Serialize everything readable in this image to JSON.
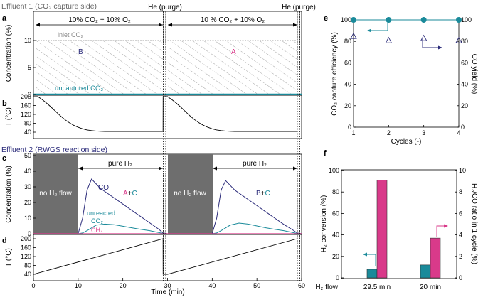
{
  "colors": {
    "teal": "#1a8a9a",
    "navy": "#2b2b7a",
    "magenta": "#d93a8a",
    "gray_fill": "#6e6e6e",
    "axis": "#000000",
    "label_gray": "#666666"
  },
  "left": {
    "section1_title": "Effluent 1 (CO₂ capture side)",
    "section2_title": "Effluent 2 (RWGS reaction side)",
    "panel_letters": [
      "a",
      "b",
      "c",
      "d"
    ],
    "he_purge_label": "He (purge)",
    "he_purge_label_2": "He (purge)",
    "phase_label_1": "10% CO₂ + 10% O₂",
    "phase_label_2": "10 % CO₂ + 10% O₂",
    "inlet_label": "inlet CO₂",
    "uncaptured_label": "uncaptured CO₂",
    "region_b": "B",
    "region_a": "A",
    "pure_h2_1": "pure H₂",
    "pure_h2_2": "pure H₂",
    "no_h2_1": "no H₂ flow",
    "no_h2_2": "no H₂ flow",
    "co_label": "CO",
    "unreacted_label_1": "unreacted",
    "unreacted_label_2": "CO₂",
    "ch4_label": "CH₄",
    "ac_part1": "A",
    "ac_part2": "+",
    "ac_part3": "C",
    "bc_part1": "B",
    "bc_part2": "+",
    "bc_part3": "C",
    "xlabel": "Time (min)"
  },
  "chart_data": [
    {
      "panel": "a",
      "type": "area",
      "title": "Effluent 1 (CO₂ capture side)",
      "ylabel": "Concentration (%)",
      "ylim": [
        0,
        10
      ],
      "yticks": [
        0,
        5,
        10
      ],
      "xlim": [
        0,
        60
      ],
      "series": [
        {
          "name": "inlet CO₂",
          "x": [
            0,
            29,
            30,
            59
          ],
          "y": [
            10,
            10,
            10,
            10
          ]
        },
        {
          "name": "uncaptured CO₂",
          "x": [
            0,
            60
          ],
          "y": [
            0.1,
            0.1
          ]
        }
      ]
    },
    {
      "panel": "b",
      "type": "line",
      "ylabel": "T (°C)",
      "ylim": [
        30,
        210
      ],
      "yticks": [
        40,
        80,
        120,
        160,
        200
      ],
      "xlim": [
        0,
        60
      ],
      "series": [
        {
          "name": "temperature",
          "x": [
            0,
            1,
            2,
            3,
            4,
            5,
            6,
            7,
            8,
            9,
            10,
            11,
            12,
            13,
            14,
            15,
            16,
            20,
            25,
            29,
            29.01,
            30,
            31,
            32,
            33,
            34,
            35,
            36,
            37,
            38,
            39,
            40,
            41,
            42,
            43,
            44,
            45,
            46,
            50,
            55,
            59
          ],
          "y": [
            200,
            200,
            186,
            170,
            152,
            133,
            114,
            97,
            83,
            71,
            62,
            55,
            50,
            47,
            45,
            44,
            43,
            43,
            43,
            43,
            200,
            200,
            186,
            170,
            152,
            133,
            114,
            97,
            83,
            71,
            62,
            55,
            50,
            47,
            45,
            44,
            43,
            43,
            43,
            43,
            43
          ]
        }
      ]
    },
    {
      "panel": "c",
      "type": "line",
      "title": "Effluent 2 (RWGS reaction side)",
      "ylabel": "Concentration (%)",
      "ylim": [
        0,
        50
      ],
      "yticks": [
        0,
        10,
        20,
        30,
        40,
        50
      ],
      "xlim": [
        0,
        60
      ],
      "series": [
        {
          "name": "CO",
          "x": [
            0,
            10,
            11,
            12,
            13,
            14,
            15,
            16,
            18,
            20,
            22,
            24,
            26,
            28,
            29,
            30,
            40,
            41,
            42,
            43,
            44,
            45,
            46,
            48,
            50,
            52,
            54,
            56,
            58,
            59,
            60
          ],
          "y": [
            0,
            0,
            10,
            28,
            35,
            32,
            29,
            27,
            23,
            19,
            15,
            11,
            7,
            3,
            0.5,
            0,
            0,
            10,
            28,
            34,
            31,
            28,
            26,
            22,
            18,
            14,
            10,
            6,
            2.5,
            0.5,
            0
          ]
        },
        {
          "name": "unreacted CO₂",
          "x": [
            0,
            10,
            11,
            12,
            14,
            16,
            18,
            20,
            22,
            24,
            26,
            28,
            29,
            30,
            40,
            41,
            42,
            44,
            46,
            48,
            50,
            52,
            54,
            56,
            58,
            59,
            60
          ],
          "y": [
            0,
            0,
            0.5,
            2,
            5.5,
            6.2,
            5.8,
            4.8,
            3.8,
            2.8,
            2,
            0.8,
            0.2,
            0,
            0,
            0.5,
            2,
            5.5,
            6.8,
            6.2,
            5,
            3.8,
            2.8,
            2,
            0.8,
            0.2,
            0
          ]
        },
        {
          "name": "CH₄",
          "x": [
            0,
            60
          ],
          "y": [
            0,
            0
          ]
        }
      ],
      "no_h2_flow_intervals": [
        [
          0,
          10
        ],
        [
          30,
          40
        ]
      ],
      "pure_h2_intervals": [
        [
          10,
          29
        ],
        [
          40,
          59
        ]
      ]
    },
    {
      "panel": "d",
      "type": "line",
      "ylabel": "T (°C)",
      "xlabel": "Time (min)",
      "ylim": [
        30,
        210
      ],
      "yticks": [
        40,
        80,
        120,
        160,
        200
      ],
      "xlim": [
        0,
        60
      ],
      "xticks": [
        0,
        10,
        20,
        30,
        40,
        50,
        60
      ],
      "series": [
        {
          "name": "temperature",
          "x": [
            0,
            29,
            29.01,
            30,
            59
          ],
          "y": [
            40,
            200,
            40,
            40,
            200
          ]
        }
      ]
    },
    {
      "panel": "e",
      "type": "scatter",
      "xlabel": "Cycles (-)",
      "ylabel": "CO₂ capture efficiency (%)",
      "ylabel_right": "CO yield (%)",
      "xlim": [
        1,
        4
      ],
      "ylim": [
        0,
        100
      ],
      "xticks": [
        1,
        2,
        3,
        4
      ],
      "yticks": [
        0,
        20,
        40,
        60,
        80,
        100
      ],
      "series": [
        {
          "name": "CO₂ capture efficiency",
          "axis": "left",
          "x": [
            1,
            2,
            3,
            4
          ],
          "y": [
            100,
            100,
            100,
            100
          ]
        },
        {
          "name": "CO yield",
          "axis": "right",
          "x": [
            1,
            2,
            3,
            4
          ],
          "y": [
            85,
            81,
            83,
            81
          ]
        }
      ]
    },
    {
      "panel": "f",
      "type": "bar",
      "categories": [
        "29.5 min",
        "20 min"
      ],
      "category_axis_label": "H₂ flow",
      "ylabel": "H₂ conversion (%)",
      "ylabel_right": "H₂/CO ratio in 1 cycle (%)",
      "ylim": [
        0,
        100
      ],
      "yticks": [
        0,
        20,
        40,
        60,
        80,
        100
      ],
      "ylim_right": [
        0,
        10
      ],
      "yticks_right": [
        0,
        2,
        4,
        6,
        8,
        10
      ],
      "series": [
        {
          "name": "H₂ conversion",
          "axis": "left",
          "values": [
            8,
            12
          ]
        },
        {
          "name": "H₂/CO ratio",
          "axis": "right",
          "values": [
            9.1,
            3.7
          ]
        }
      ]
    }
  ],
  "panel_e_letter": "e",
  "panel_f_letter": "f"
}
